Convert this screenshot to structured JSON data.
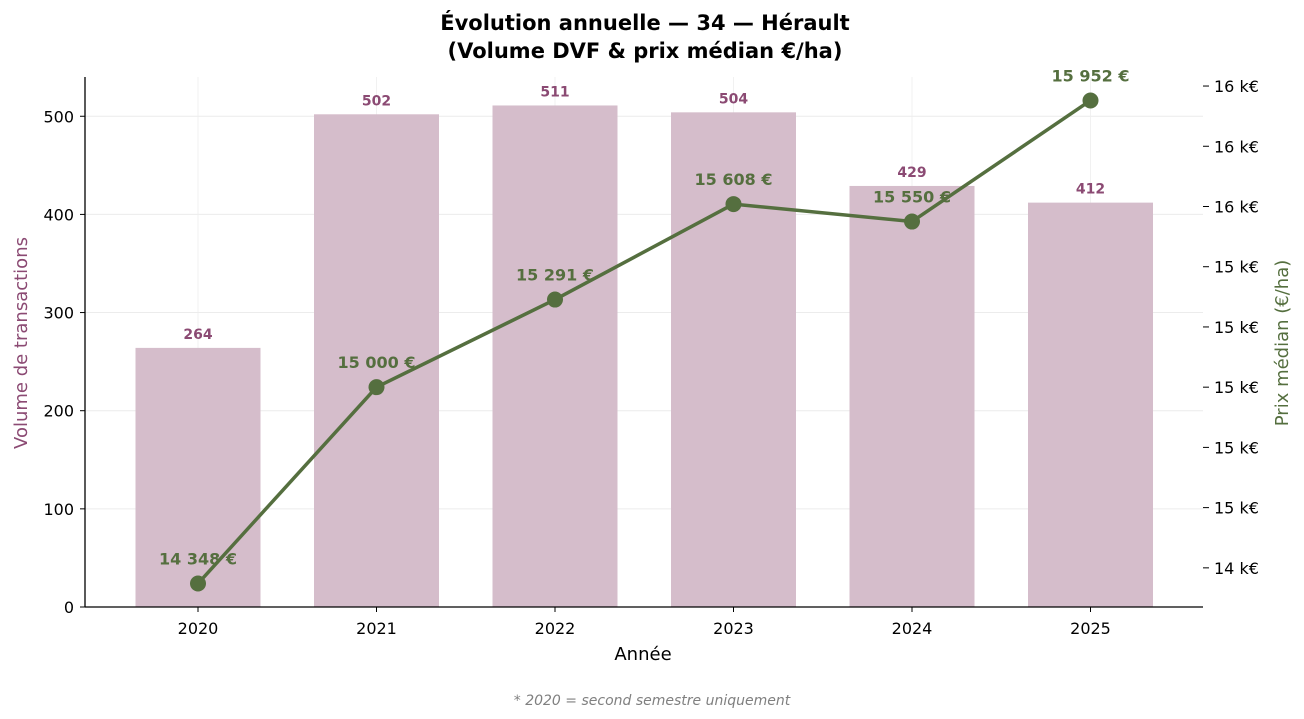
{
  "chart_data": {
    "type": "bar+line",
    "title_line1": "Évolution annuelle — 34 — Hérault",
    "title_line2": "(Volume DVF & prix médian €/ha)",
    "xlabel": "Année",
    "ylabel_left": "Volume de transactions",
    "ylabel_right": "Prix médian (€/ha)",
    "categories": [
      "2020",
      "2021",
      "2022",
      "2023",
      "2024",
      "2025"
    ],
    "volumes": [
      264,
      502,
      511,
      504,
      429,
      412
    ],
    "volume_labels": [
      "264",
      "502",
      "511",
      "504",
      "429",
      "412"
    ],
    "prices": [
      14348,
      15000,
      15291,
      15608,
      15550,
      15952
    ],
    "price_labels": [
      "14 348 €",
      "15 000 €",
      "15 291 €",
      "15 608 €",
      "15 550 €",
      "15 952 €"
    ],
    "ylim_left": [
      0,
      540
    ],
    "yticks_left": [
      "0",
      "100",
      "200",
      "300",
      "400",
      "500"
    ],
    "ylim_right": [
      14270,
      16030
    ],
    "yticks_right_values": [
      14400,
      14600,
      14800,
      15000,
      15200,
      15400,
      15600,
      15800,
      16000
    ],
    "yticks_right_labels": [
      "14 k€",
      "15 k€",
      "15 k€",
      "15 k€",
      "15 k€",
      "15 k€",
      "16 k€",
      "16 k€",
      "16 k€"
    ],
    "grid": true,
    "footnote": "* 2020 = second semestre uniquement",
    "colors": {
      "bar": "#d5bdcb",
      "bar_label": "#8b4a73",
      "line": "#556f3f",
      "left_axis_label": "#8b4a73",
      "right_axis_label": "#556f3f",
      "grid": "#ececec"
    }
  }
}
